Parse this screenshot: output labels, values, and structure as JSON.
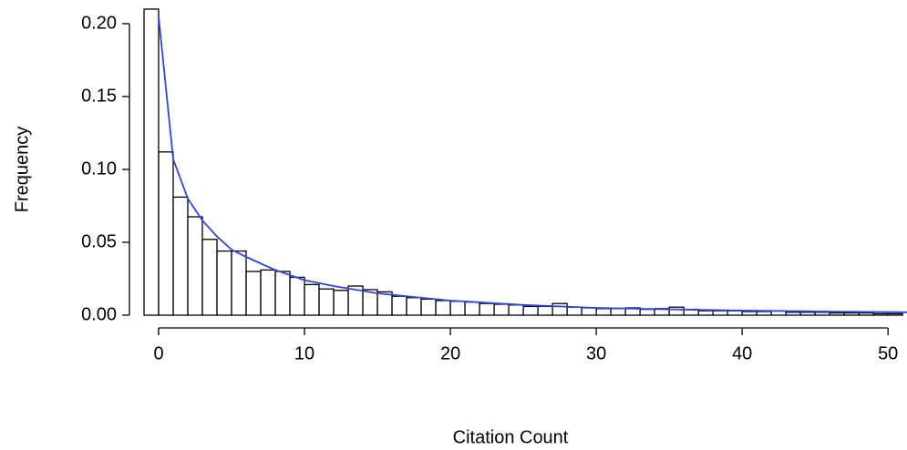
{
  "chart_data": {
    "type": "histogram",
    "xlabel": "Citation Count",
    "ylabel": "Frequency",
    "bins": [
      -1,
      0,
      1,
      2,
      3,
      4,
      5,
      6,
      7,
      8,
      9,
      10,
      11,
      12,
      13,
      14,
      15,
      16,
      17,
      18,
      19,
      20,
      21,
      22,
      23,
      24,
      25,
      26,
      27,
      28,
      29,
      30,
      31,
      32,
      33,
      34,
      35,
      36,
      37,
      38,
      39,
      40,
      41,
      42,
      43,
      44,
      45,
      46,
      47,
      48,
      49,
      50,
      51
    ],
    "counts": [
      0.21,
      0.112,
      0.081,
      0.0675,
      0.052,
      0.044,
      0.044,
      0.03,
      0.031,
      0.03,
      0.026,
      0.021,
      0.018,
      0.017,
      0.02,
      0.0175,
      0.016,
      0.013,
      0.012,
      0.011,
      0.01,
      0.0095,
      0.009,
      0.008,
      0.0075,
      0.007,
      0.006,
      0.006,
      0.008,
      0.0055,
      0.005,
      0.0045,
      0.0045,
      0.005,
      0.004,
      0.0045,
      0.0055,
      0.004,
      0.003,
      0.003,
      0.003,
      0.0025,
      0.0025,
      0.003,
      0.002,
      0.002,
      0.002,
      0.0015,
      0.0015,
      0.0015,
      0.001,
      0.001
    ],
    "color": "#ffffff",
    "edgecolor": "#000000",
    "curve": {
      "color": "#3344dd",
      "x": [
        0,
        1,
        2,
        3,
        4,
        5,
        6,
        8,
        10,
        12,
        15,
        20,
        25,
        30,
        35,
        40,
        45,
        51.3
      ],
      "values": [
        0.205,
        0.107,
        0.08,
        0.065,
        0.054,
        0.045,
        0.04,
        0.031,
        0.024,
        0.02,
        0.015,
        0.01,
        0.007,
        0.005,
        0.004,
        0.0032,
        0.0026,
        0.002
      ]
    },
    "xlim": [
      -1,
      51.3
    ],
    "ylim": [
      0,
      0.21
    ],
    "xticks": [
      0,
      10,
      20,
      30,
      40,
      50
    ],
    "yticks": [
      {
        "value": 0,
        "label": "0.00"
      },
      {
        "value": 0.05,
        "label": "0.05"
      },
      {
        "value": 0.1,
        "label": "0.10"
      },
      {
        "value": 0.15,
        "label": "0.15"
      },
      {
        "value": 0.2,
        "label": "0.20"
      }
    ]
  }
}
